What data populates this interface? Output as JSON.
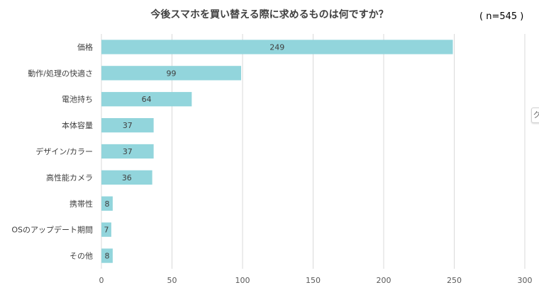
{
  "chart_data": {
    "type": "bar",
    "orientation": "horizontal",
    "title": "今後スマホを買い替える際に求めるものは何ですか？",
    "annotation": "( n=545 )",
    "categories": [
      "価格",
      "動作/処理の快適さ",
      "電池持ち",
      "本体容量",
      "デザイン/カラー",
      "高性能カメラ",
      "携帯性",
      "OSのアップデート期間",
      "その他"
    ],
    "values": [
      249,
      99,
      64,
      37,
      37,
      36,
      8,
      7,
      8
    ],
    "xlim": [
      0,
      300
    ],
    "xticks": [
      0,
      50,
      100,
      150,
      200,
      250,
      300
    ],
    "grid": true,
    "bar_color": "#92d5dc"
  },
  "side_tab_text": "ク"
}
